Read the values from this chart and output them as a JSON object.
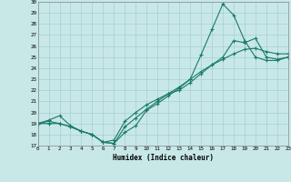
{
  "background_color": "#c8e8e8",
  "grid_color": "#a8cece",
  "line_color": "#1a7a6a",
  "xlabel": "Humidex (Indice chaleur)",
  "ylim": [
    17,
    30
  ],
  "xlim": [
    0,
    23
  ],
  "yticks": [
    17,
    18,
    19,
    20,
    21,
    22,
    23,
    24,
    25,
    26,
    27,
    28,
    29,
    30
  ],
  "xticks": [
    0,
    1,
    2,
    3,
    4,
    5,
    6,
    7,
    8,
    9,
    10,
    11,
    12,
    13,
    14,
    15,
    16,
    17,
    18,
    19,
    20,
    21,
    22,
    23
  ],
  "line1_x": [
    0,
    1,
    2,
    3,
    4,
    5,
    6,
    7,
    8,
    9,
    10,
    11,
    12,
    13,
    14,
    15,
    16,
    17,
    18,
    19,
    20,
    21,
    22,
    23
  ],
  "line1_y": [
    19.0,
    19.2,
    19.0,
    18.7,
    18.3,
    18.0,
    17.3,
    17.2,
    18.7,
    19.5,
    20.3,
    21.0,
    21.7,
    22.3,
    23.0,
    23.7,
    24.3,
    24.8,
    25.3,
    25.7,
    25.8,
    25.5,
    25.3,
    25.3
  ],
  "line2_x": [
    0,
    1,
    2,
    3,
    4,
    5,
    6,
    7,
    8,
    9,
    10,
    11,
    12,
    13,
    14,
    15,
    16,
    17,
    18,
    19,
    20,
    21,
    22,
    23
  ],
  "line2_y": [
    19.0,
    19.0,
    19.0,
    18.7,
    18.3,
    18.0,
    17.3,
    17.2,
    18.2,
    18.8,
    20.2,
    20.8,
    21.5,
    22.2,
    23.0,
    25.2,
    27.5,
    29.8,
    28.8,
    26.5,
    25.0,
    24.7,
    24.7,
    25.0
  ],
  "line3_x": [
    0,
    1,
    2,
    3,
    4,
    5,
    6,
    7,
    8,
    9,
    10,
    11,
    12,
    13,
    14,
    15,
    16,
    17,
    18,
    19,
    20,
    21,
    22,
    23
  ],
  "line3_y": [
    19.0,
    19.3,
    19.7,
    18.8,
    18.3,
    18.0,
    17.3,
    17.5,
    19.2,
    20.0,
    20.7,
    21.2,
    21.7,
    22.0,
    22.7,
    23.5,
    24.3,
    25.0,
    26.5,
    26.3,
    26.7,
    25.0,
    24.8,
    25.0
  ]
}
